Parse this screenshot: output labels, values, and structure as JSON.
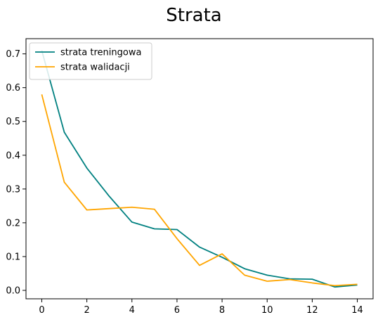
{
  "chart_data": {
    "type": "line",
    "title": "Strata",
    "xlabel": "",
    "ylabel": "",
    "xlim": [
      -0.7,
      14.7
    ],
    "ylim": [
      -0.025,
      0.745
    ],
    "xticks": [
      0,
      2,
      4,
      6,
      8,
      10,
      12,
      14
    ],
    "yticks": [
      0.0,
      0.1,
      0.2,
      0.3,
      0.4,
      0.5,
      0.6,
      0.7
    ],
    "grid": false,
    "legend_position": "top-left",
    "x": [
      0,
      1,
      2,
      3,
      4,
      5,
      6,
      7,
      8,
      9,
      10,
      11,
      12,
      13,
      14
    ],
    "series": [
      {
        "name": "strata treningowa",
        "color": "#008080",
        "values": [
          0.71,
          0.468,
          0.362,
          0.278,
          0.202,
          0.182,
          0.18,
          0.128,
          0.098,
          0.064,
          0.045,
          0.034,
          0.033,
          0.01,
          0.016
        ]
      },
      {
        "name": "strata walidacji",
        "color": "#FFA500",
        "values": [
          0.58,
          0.32,
          0.238,
          0.242,
          0.246,
          0.24,
          0.153,
          0.074,
          0.108,
          0.045,
          0.027,
          0.032,
          0.022,
          0.014,
          0.018
        ]
      }
    ]
  }
}
